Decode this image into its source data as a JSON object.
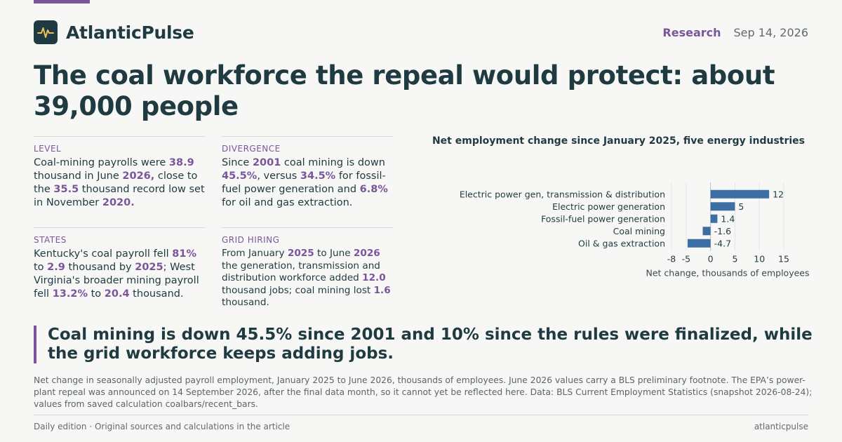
{
  "header": {
    "brand": "AtlanticPulse",
    "logo_icon": "pulse-icon",
    "section": "Research",
    "date": "Sep 14, 2026"
  },
  "headline": "The coal workforce the repeal would protect: about 39,000 people",
  "cards": [
    {
      "label": "LEVEL",
      "parts": [
        {
          "t": "Coal-mining payrolls were "
        },
        {
          "t": "38.9",
          "hl": true
        },
        {
          "t": " thousand in June "
        },
        {
          "t": "2026,",
          "hl": true
        },
        {
          "t": " close to the "
        },
        {
          "t": "35.5",
          "hl": true
        },
        {
          "t": " thousand record low set in November "
        },
        {
          "t": "2020.",
          "hl": true
        }
      ]
    },
    {
      "label": "DIVERGENCE",
      "parts": [
        {
          "t": "Since "
        },
        {
          "t": "2001",
          "hl": true
        },
        {
          "t": " coal mining is down "
        },
        {
          "t": "45.5%",
          "hl": true
        },
        {
          "t": ", versus "
        },
        {
          "t": "34.5%",
          "hl": true
        },
        {
          "t": " for fossil-fuel power generation and "
        },
        {
          "t": "6.8%",
          "hl": true
        },
        {
          "t": " for oil and gas extraction."
        }
      ]
    },
    {
      "label": "STATES",
      "parts": [
        {
          "t": "Kentucky's coal payroll fell "
        },
        {
          "t": "81%",
          "hl": true
        },
        {
          "t": " to "
        },
        {
          "t": "2.9",
          "hl": true
        },
        {
          "t": " thousand by "
        },
        {
          "t": "2025",
          "hl": true
        },
        {
          "t": "; West Virginia's broader mining payroll fell "
        },
        {
          "t": "13.2%",
          "hl": true
        },
        {
          "t": " to "
        },
        {
          "t": "20.4",
          "hl": true
        },
        {
          "t": " thousand."
        }
      ]
    },
    {
      "label": "GRID HIRING",
      "parts": [
        {
          "t": "From January "
        },
        {
          "t": "2025",
          "hl": true
        },
        {
          "t": " to June "
        },
        {
          "t": "2026",
          "hl": true
        },
        {
          "t": " the generation, transmission and distribution workforce added "
        },
        {
          "t": "12.0",
          "hl": true
        },
        {
          "t": " thousand jobs; coal mining lost "
        },
        {
          "t": "1.6",
          "hl": true
        },
        {
          "t": " thousand."
        }
      ]
    }
  ],
  "chart_data": {
    "type": "bar",
    "orientation": "horizontal",
    "title": "Net employment change since January 2025, five energy industries",
    "categories": [
      "Electric power gen, transmission & distribution",
      "Electric power generation",
      "Fossil-fuel power generation",
      "Coal mining",
      "Oil & gas extraction"
    ],
    "values": [
      12,
      5,
      1.4,
      -1.6,
      -4.7
    ],
    "value_labels": [
      "12",
      "5",
      "1.4",
      "-1.6",
      "-4.7"
    ],
    "xlabel": "Net change, thousands of employees",
    "xticks": [
      -8,
      -5,
      0,
      5,
      10,
      15
    ],
    "xlim": [
      -8,
      15
    ],
    "grid": true,
    "bar_color": "#3d6ea3"
  },
  "quote": "Coal mining is down 45.5% since 2001 and 10% since the rules were finalized, while the grid workforce keeps adding jobs.",
  "note": "Net change in seasonally adjusted payroll employment, January 2025 to June 2026, thousands of employees. June 2026 values carry a BLS preliminary footnote. The EPA’s power-plant repeal was announced on 14 September 2026, after the final data month, so it cannot yet be reflected here. Data: BLS Current Employment Statistics (snapshot 2026-08-24); values from saved calculation coalbars/recent_bars.",
  "footer": {
    "left": "Daily edition · Original sources and calculations in the article",
    "right": "atlanticpulse"
  },
  "colors": {
    "accent": "#7a559b",
    "ink": "#1f3a40",
    "bar": "#3d6ea3"
  }
}
